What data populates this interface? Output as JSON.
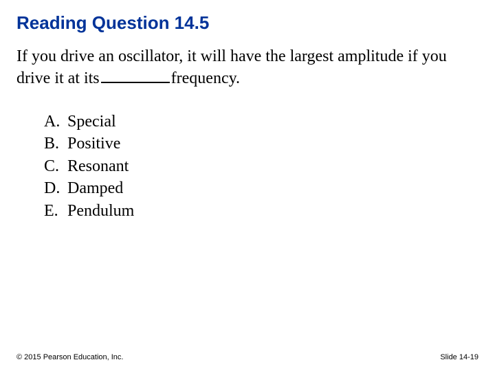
{
  "title": "Reading Question 14.5",
  "question_part1": "If you drive an oscillator, it will have the largest amplitude if you drive it at its",
  "question_part2": "frequency.",
  "options": [
    {
      "letter": "A.",
      "text": "Special"
    },
    {
      "letter": "B.",
      "text": "Positive"
    },
    {
      "letter": "C.",
      "text": "Resonant"
    },
    {
      "letter": "D.",
      "text": "Damped"
    },
    {
      "letter": "E.",
      "text": "Pendulum"
    }
  ],
  "copyright": "© 2015 Pearson Education, Inc.",
  "slide_label": "Slide 14-19",
  "colors": {
    "title_color": "#003399",
    "text_color": "#000000",
    "background": "#ffffff"
  },
  "fonts": {
    "title_family": "Arial",
    "title_size_pt": 20,
    "body_family": "Times New Roman",
    "body_size_pt": 18,
    "footer_size_pt": 8
  }
}
